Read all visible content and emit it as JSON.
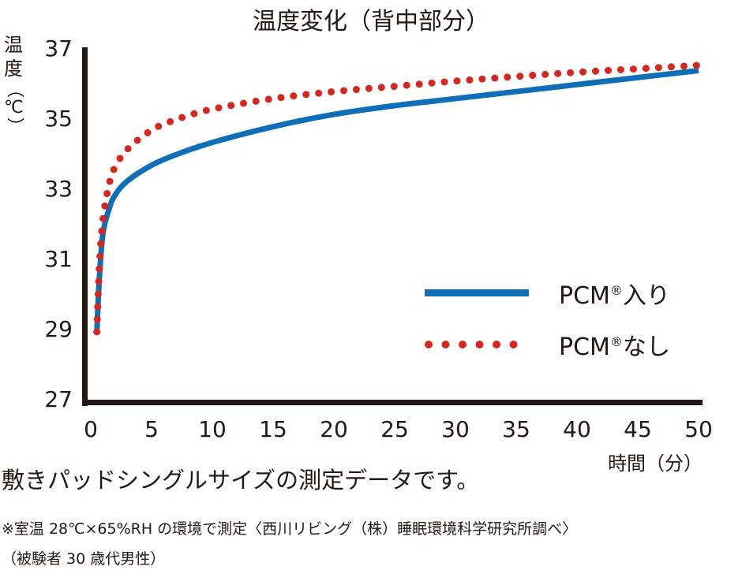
{
  "chart_data": {
    "type": "line",
    "title": "温度変化（背中部分）",
    "xlabel": "時間（分）",
    "ylabel": "温度（℃）",
    "x_ticks": [
      "0",
      "5",
      "10",
      "15",
      "20",
      "25",
      "30",
      "35",
      "40",
      "45",
      "50"
    ],
    "y_ticks": [
      "27",
      "29",
      "31",
      "33",
      "35",
      "37"
    ],
    "xlim": [
      0,
      50
    ],
    "ylim": [
      27,
      37
    ],
    "grid": false,
    "legend_position": "lower right (inside plot)",
    "x": [
      0.5,
      0.7,
      1,
      1.5,
      2,
      3,
      5,
      7,
      10,
      15,
      20,
      25,
      30,
      35,
      40,
      45,
      50
    ],
    "series": [
      {
        "name": "PCM®入り",
        "style": "solid",
        "color": "#0e6eb8",
        "values": [
          29.0,
          30.5,
          31.8,
          32.5,
          32.9,
          33.3,
          33.75,
          34.05,
          34.4,
          34.85,
          35.2,
          35.45,
          35.65,
          35.85,
          36.05,
          36.25,
          36.45
        ]
      },
      {
        "name": "PCM®なし",
        "style": "dotted",
        "color": "#d7261e",
        "values": [
          29.0,
          30.8,
          32.2,
          33.2,
          33.7,
          34.2,
          34.75,
          35.05,
          35.35,
          35.65,
          35.85,
          36.0,
          36.15,
          36.28,
          36.4,
          36.5,
          36.6
        ]
      }
    ]
  },
  "title": "温度変化（背中部分）",
  "y_axis": {
    "label_lines": [
      "温",
      "度",
      "（℃）"
    ]
  },
  "x_axis": {
    "label": "時間（分）"
  },
  "legend": {
    "items": [
      {
        "label": "PCM",
        "mark": "®",
        "suffix": "入り"
      },
      {
        "label": "PCM",
        "mark": "®",
        "suffix": "なし"
      }
    ]
  },
  "notes": {
    "line1": "敷きパッドシングルサイズの測定データです。",
    "line2": "※室温 28℃×65%RH の環境で測定〈西川リビング（株）睡眠環境科学研究所調べ〉",
    "line3": "（被験者 30 歳代男性）"
  }
}
